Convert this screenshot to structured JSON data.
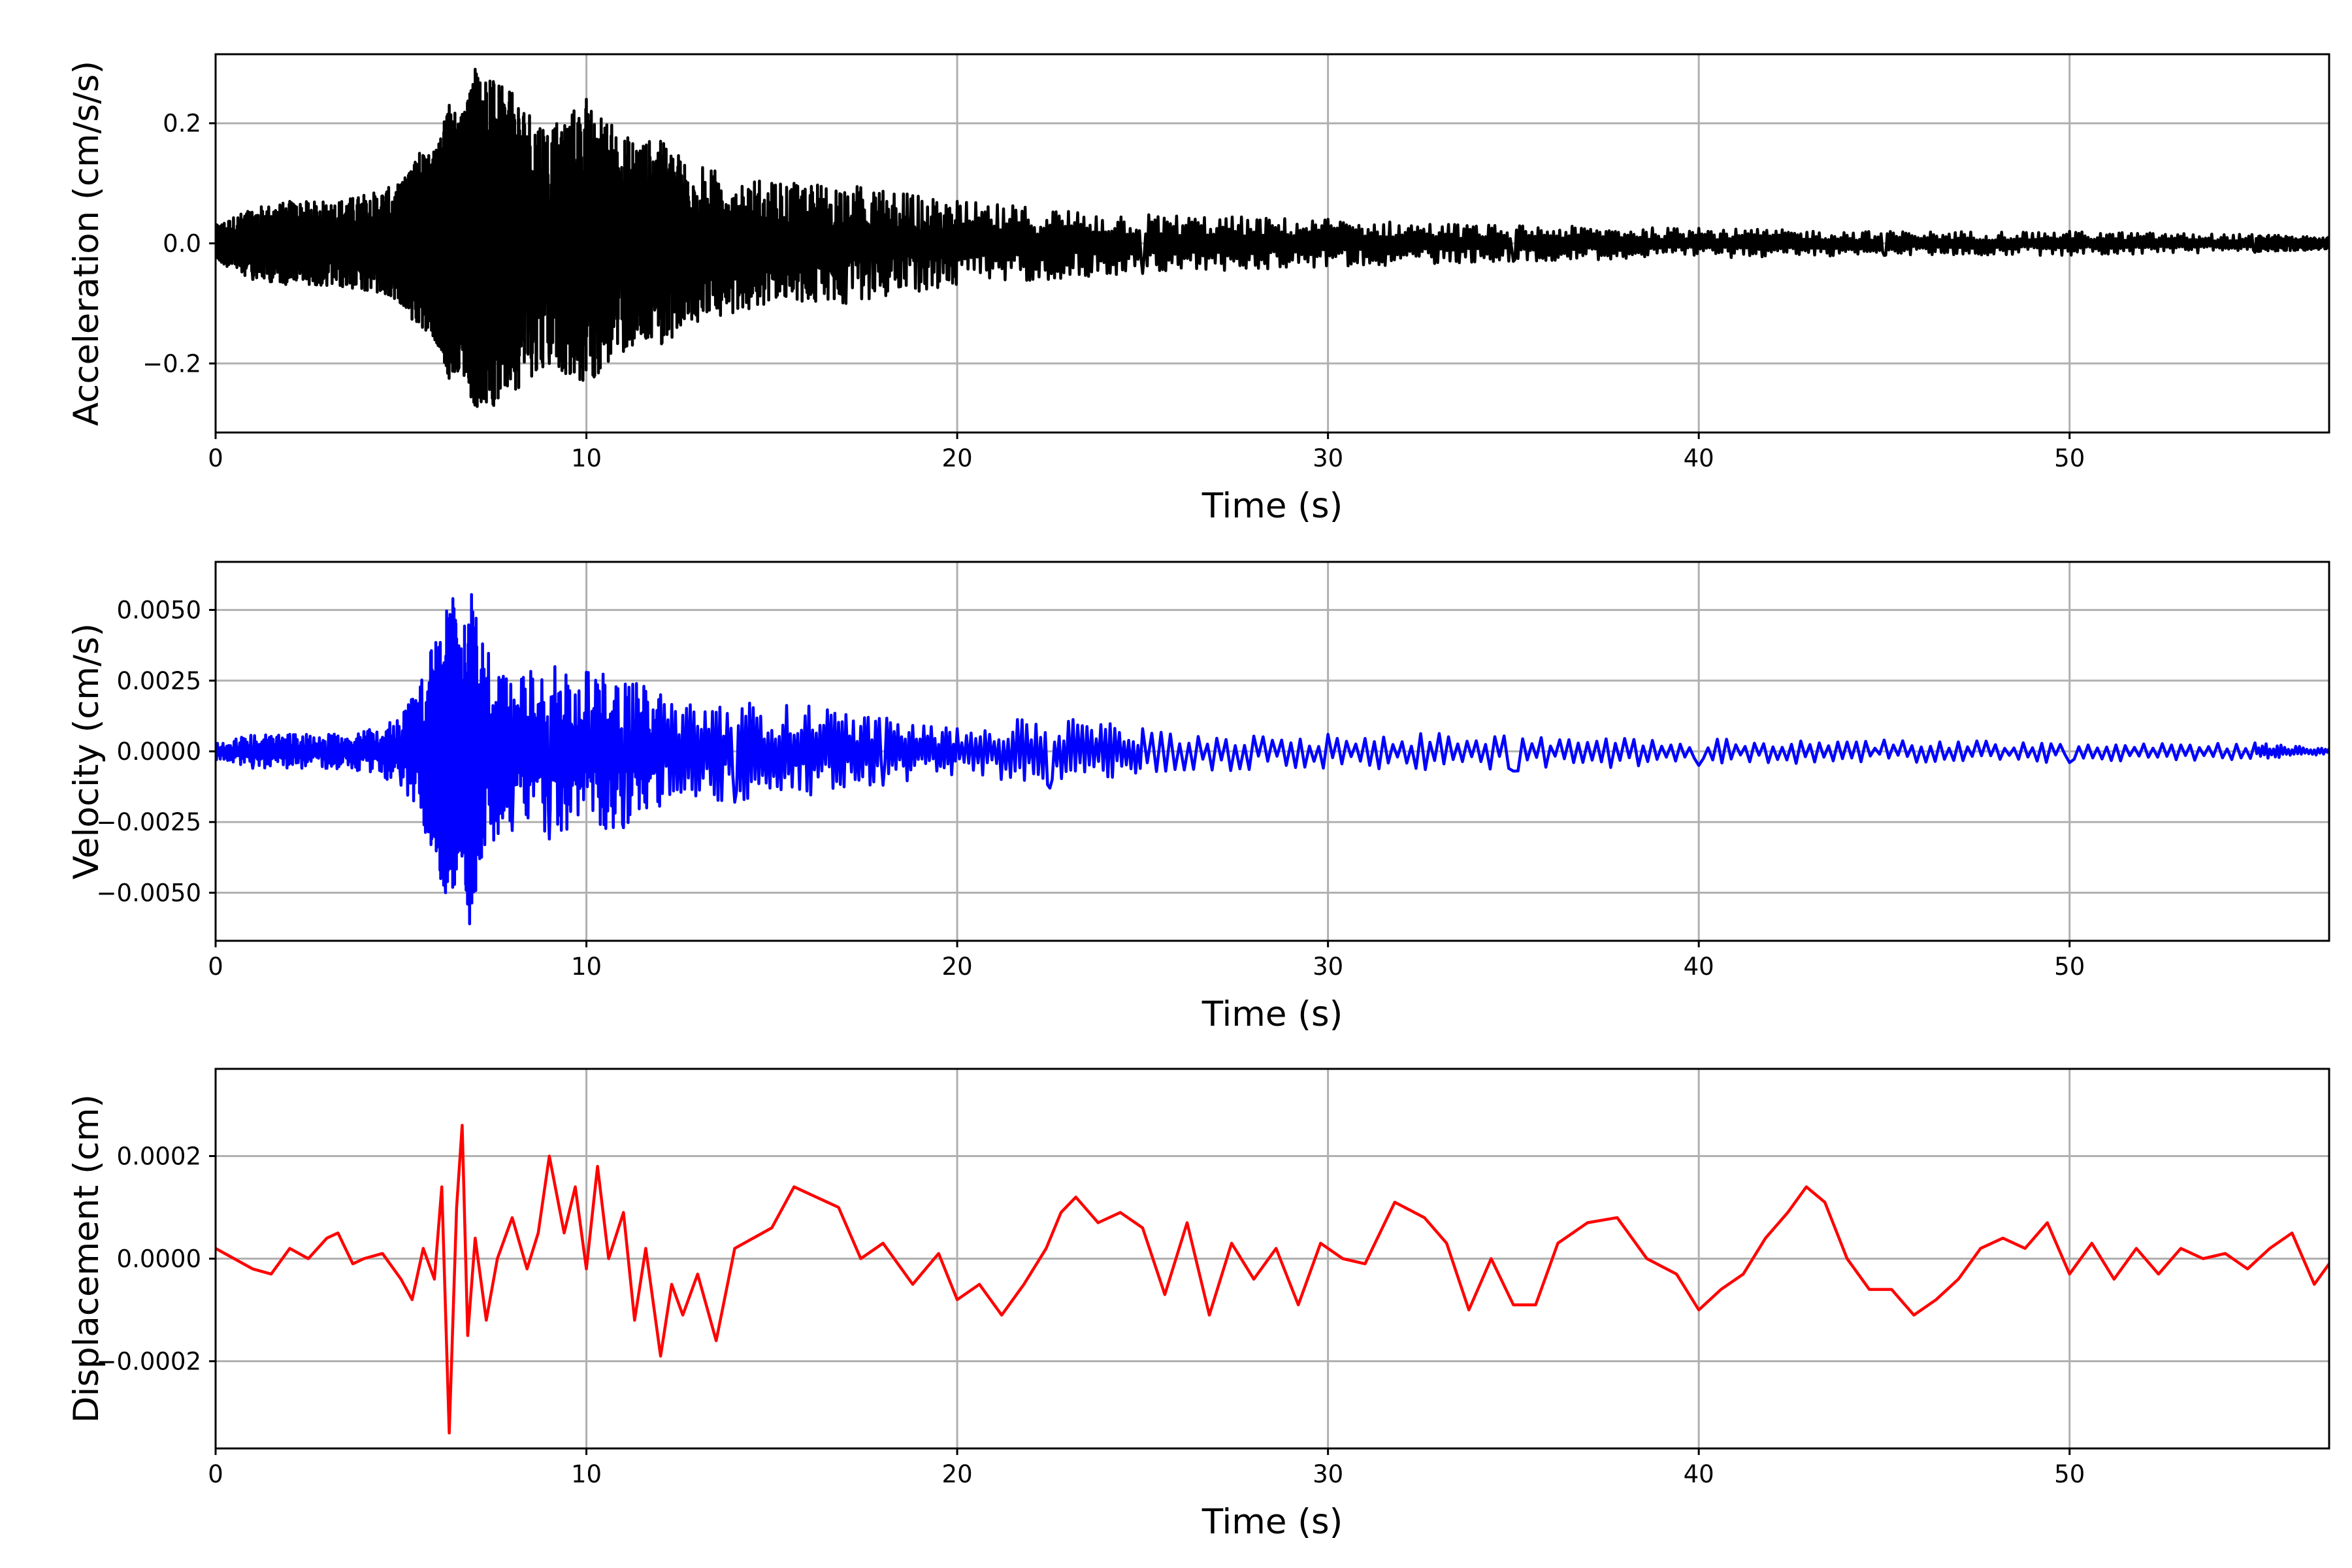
{
  "chart_data": [
    {
      "type": "line",
      "xlabel": "Time (s)",
      "ylabel": "Acceleration (cm/s/s)",
      "xlim": [
        0,
        57
      ],
      "ylim": [
        -0.315,
        0.315
      ],
      "xticks": [
        0,
        10,
        20,
        30,
        40,
        50
      ],
      "xtick_labels": [
        "0",
        "10",
        "20",
        "30",
        "40",
        "50"
      ],
      "yticks": [
        -0.2,
        0.0,
        0.2
      ],
      "ytick_labels": [
        "−0.2",
        "0.0",
        "0.2"
      ],
      "grid": true,
      "color": "#000000",
      "series": [
        {
          "x": [
            0,
            1,
            2,
            3,
            4,
            5,
            5.5,
            6,
            6.3,
            6.7,
            7.0,
            7.5,
            8,
            9,
            10,
            11,
            12,
            13,
            15,
            17,
            20,
            25,
            30,
            35,
            40,
            45,
            50,
            55,
            57
          ],
          "y": [
            0.03,
            -0.06,
            0.07,
            -0.07,
            0.08,
            -0.1,
            0.15,
            -0.17,
            0.23,
            -0.22,
            0.29,
            -0.27,
            0.25,
            -0.2,
            0.24,
            -0.18,
            0.17,
            -0.13,
            0.1,
            -0.1,
            0.07,
            -0.05,
            0.04,
            -0.03,
            0.025,
            -0.02,
            0.02,
            -0.015,
            0.01
          ]
        }
      ]
    },
    {
      "type": "line",
      "xlabel": "Time (s)",
      "ylabel": "Velocity (cm/s)",
      "xlim": [
        0,
        57
      ],
      "ylim": [
        -0.0067,
        0.0067
      ],
      "xticks": [
        0,
        10,
        20,
        30,
        40,
        50
      ],
      "xtick_labels": [
        "0",
        "10",
        "20",
        "30",
        "40",
        "50"
      ],
      "yticks": [
        -0.005,
        -0.0025,
        0.0,
        0.0025,
        0.005
      ],
      "ytick_labels": [
        "−0.0050",
        "−0.0025",
        "0.0000",
        "0.0025",
        "0.0050"
      ],
      "grid": true,
      "color": "#0000ff",
      "series": [
        {
          "x": [
            0,
            1,
            2,
            3,
            4,
            5,
            5.8,
            6.2,
            6.4,
            6.6,
            6.85,
            7.2,
            8,
            9,
            10,
            11,
            12,
            14,
            16,
            18,
            20,
            22.5,
            25,
            30,
            35,
            40,
            45,
            50,
            55,
            57
          ],
          "y": [
            0.0003,
            -0.0006,
            0.0006,
            -0.0006,
            0.0007,
            -0.0012,
            0.0035,
            -0.005,
            0.0054,
            -0.0035,
            -0.0061,
            0.0038,
            -0.0028,
            -0.0031,
            0.0028,
            -0.0027,
            0.002,
            -0.0018,
            0.0016,
            -0.0012,
            0.0008,
            -0.0013,
            0.0008,
            0.0006,
            -0.0007,
            -0.0005,
            0.0004,
            -0.0004,
            0.0003,
            0.0001
          ]
        }
      ]
    },
    {
      "type": "line",
      "xlabel": "Time (s)",
      "ylabel": "Displacement (cm)",
      "xlim": [
        0,
        57
      ],
      "ylim": [
        -0.00037,
        0.00037
      ],
      "xticks": [
        0,
        10,
        20,
        30,
        40,
        50
      ],
      "xtick_labels": [
        "0",
        "10",
        "20",
        "30",
        "40",
        "50"
      ],
      "yticks": [
        -0.0002,
        0.0,
        0.0002
      ],
      "ytick_labels": [
        "−0.0002",
        "0.0000",
        "0.0002"
      ],
      "grid": true,
      "color": "#ff0000",
      "series": [
        {
          "x": [
            0,
            0.5,
            1,
            1.5,
            2,
            2.5,
            3,
            3.3,
            3.7,
            4,
            4.5,
            5,
            5.3,
            5.6,
            5.9,
            6.1,
            6.3,
            6.5,
            6.65,
            6.8,
            7.0,
            7.3,
            7.6,
            8.0,
            8.4,
            8.7,
            9.0,
            9.4,
            9.7,
            10.0,
            10.3,
            10.6,
            11.0,
            11.3,
            11.6,
            12.0,
            12.3,
            12.6,
            13.0,
            13.5,
            14.0,
            14.5,
            15.0,
            15.6,
            16.2,
            16.8,
            17.4,
            18.0,
            18.8,
            19.5,
            20.0,
            20.6,
            21.2,
            21.8,
            22.4,
            22.8,
            23.2,
            23.8,
            24.4,
            25.0,
            25.6,
            26.2,
            26.8,
            27.4,
            28.0,
            28.6,
            29.2,
            29.8,
            30.4,
            31.0,
            31.8,
            32.6,
            33.2,
            33.8,
            34.4,
            35.0,
            35.6,
            36.2,
            37.0,
            37.8,
            38.6,
            39.4,
            40.0,
            40.6,
            41.2,
            41.8,
            42.4,
            42.9,
            43.4,
            44.0,
            44.6,
            45.2,
            45.8,
            46.4,
            47.0,
            47.6,
            48.2,
            48.8,
            49.4,
            50.0,
            50.6,
            51.2,
            51.8,
            52.4,
            53.0,
            53.6,
            54.2,
            54.8,
            55.4,
            56.0,
            56.6,
            57.0
          ],
          "y": [
            2e-05,
            0.0,
            -2e-05,
            -3e-05,
            2e-05,
            0.0,
            4e-05,
            5e-05,
            -1e-05,
            0.0,
            1e-05,
            -4e-05,
            -8e-05,
            2e-05,
            -4e-05,
            0.00014,
            -0.00034,
            0.0001,
            0.00026,
            -0.00015,
            4e-05,
            -0.00012,
            0.0,
            8e-05,
            -2e-05,
            5e-05,
            0.0002,
            5e-05,
            0.00014,
            -2e-05,
            0.00018,
            0.0,
            9e-05,
            -0.00012,
            2e-05,
            -0.00019,
            -5e-05,
            -0.00011,
            -3e-05,
            -0.00016,
            2e-05,
            4e-05,
            6e-05,
            0.00014,
            0.00012,
            0.0001,
            0.0,
            3e-05,
            -5e-05,
            1e-05,
            -8e-05,
            -5e-05,
            -0.00011,
            -5e-05,
            2e-05,
            9e-05,
            0.00012,
            7e-05,
            9e-05,
            6e-05,
            -7e-05,
            7e-05,
            -0.00011,
            3e-05,
            -4e-05,
            2e-05,
            -9e-05,
            3e-05,
            0.0,
            -1e-05,
            0.00011,
            8e-05,
            3e-05,
            -0.0001,
            0.0,
            -9e-05,
            -9e-05,
            3e-05,
            7e-05,
            8e-05,
            0.0,
            -3e-05,
            -0.0001,
            -6e-05,
            -3e-05,
            4e-05,
            9e-05,
            0.00014,
            0.00011,
            0.0,
            -6e-05,
            -6e-05,
            -0.00011,
            -8e-05,
            -4e-05,
            2e-05,
            4e-05,
            2e-05,
            7e-05,
            -3e-05,
            3e-05,
            -4e-05,
            2e-05,
            -3e-05,
            2e-05,
            0.0,
            1e-05,
            -2e-05,
            2e-05,
            5e-05,
            -5e-05,
            -1e-05
          ]
        }
      ]
    }
  ]
}
